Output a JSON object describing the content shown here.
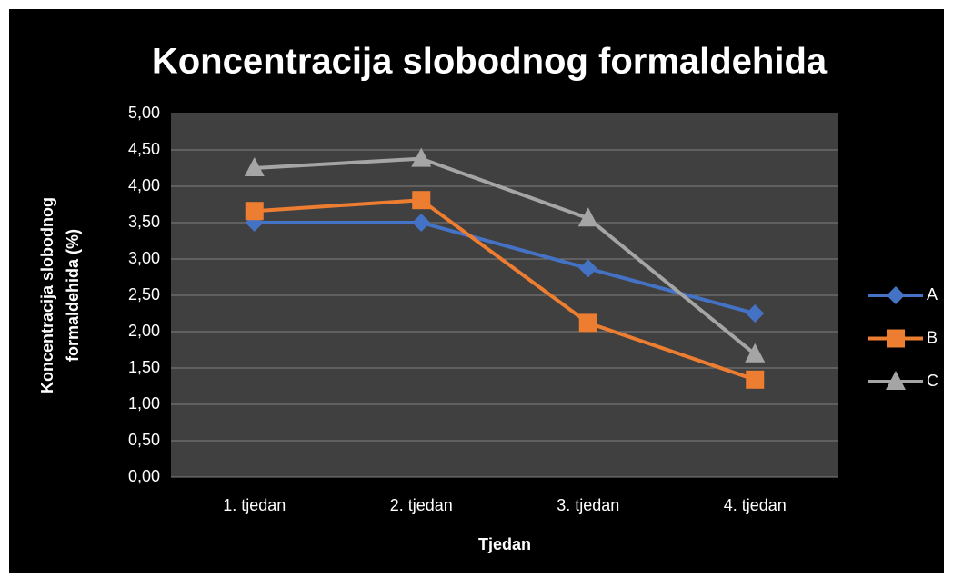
{
  "chart_data": {
    "type": "line",
    "title": "Koncentracija slobodnog formaldehida",
    "x_label": "Tjedan",
    "y_label": "Koncentracija slobodnog formaldehida (%)",
    "categories": [
      "1. tjedan",
      "2. tjedan",
      "3. tjedan",
      "4. tjedan"
    ],
    "series": [
      {
        "name": "A",
        "color": "#4472c4",
        "marker": "diamond",
        "values": [
          3.5,
          3.5,
          2.87,
          2.25
        ]
      },
      {
        "name": "B",
        "color": "#ed7d31",
        "marker": "square",
        "values": [
          3.66,
          3.81,
          2.12,
          1.34
        ]
      },
      {
        "name": "C",
        "color": "#a5a5a5",
        "marker": "triangle",
        "values": [
          4.25,
          4.38,
          3.56,
          1.69
        ]
      }
    ],
    "ylim": [
      0,
      5
    ],
    "yticks": [
      {
        "value": 0,
        "label": "0,00"
      },
      {
        "value": 0.5,
        "label": "0,50"
      },
      {
        "value": 1,
        "label": "1,00"
      },
      {
        "value": 1.5,
        "label": "1,50"
      },
      {
        "value": 2,
        "label": "2,00"
      },
      {
        "value": 2.5,
        "label": "2,50"
      },
      {
        "value": 3,
        "label": "3,00"
      },
      {
        "value": 3.5,
        "label": "3,50"
      },
      {
        "value": 4,
        "label": "4,00"
      },
      {
        "value": 4.5,
        "label": "4,50"
      },
      {
        "value": 5,
        "label": "5,00"
      }
    ],
    "grid": true,
    "legend": "right"
  }
}
